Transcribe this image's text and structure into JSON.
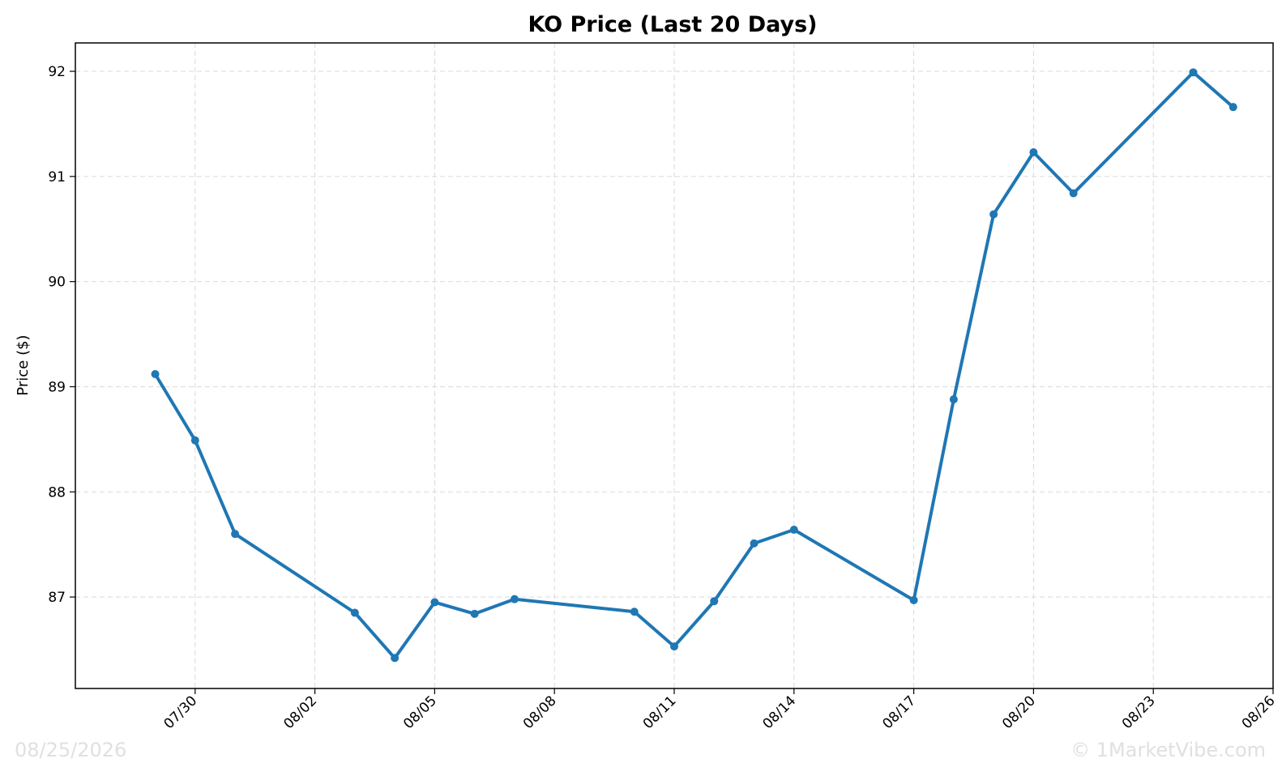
{
  "chart_data": {
    "type": "line",
    "title": "KO Price (Last 20 Days)",
    "xlabel": "",
    "ylabel": "Price ($)",
    "x_ticks": [
      "07/30",
      "08/02",
      "08/05",
      "08/08",
      "08/11",
      "08/14",
      "08/17",
      "08/20",
      "08/23",
      "08/26"
    ],
    "y_ticks": [
      87,
      88,
      89,
      90,
      91,
      92
    ],
    "xlim": [
      "2026-07-27",
      "2026-08-26"
    ],
    "ylim": [
      86.13,
      92.27
    ],
    "grid": true,
    "series": [
      {
        "color": "#1f77b4",
        "points": [
          {
            "date": "2026-07-29",
            "value": 89.12
          },
          {
            "date": "2026-07-30",
            "value": 88.49
          },
          {
            "date": "2026-07-31",
            "value": 87.6
          },
          {
            "date": "2026-08-03",
            "value": 86.85
          },
          {
            "date": "2026-08-04",
            "value": 86.42
          },
          {
            "date": "2026-08-05",
            "value": 86.95
          },
          {
            "date": "2026-08-06",
            "value": 86.84
          },
          {
            "date": "2026-08-07",
            "value": 86.98
          },
          {
            "date": "2026-08-10",
            "value": 86.86
          },
          {
            "date": "2026-08-11",
            "value": 86.53
          },
          {
            "date": "2026-08-12",
            "value": 86.96
          },
          {
            "date": "2026-08-13",
            "value": 87.51
          },
          {
            "date": "2026-08-14",
            "value": 87.64
          },
          {
            "date": "2026-08-17",
            "value": 86.97
          },
          {
            "date": "2026-08-18",
            "value": 88.88
          },
          {
            "date": "2026-08-19",
            "value": 90.64
          },
          {
            "date": "2026-08-20",
            "value": 91.23
          },
          {
            "date": "2026-08-21",
            "value": 90.84
          },
          {
            "date": "2026-08-24",
            "value": 91.99
          },
          {
            "date": "2026-08-25",
            "value": 91.66
          }
        ]
      }
    ]
  },
  "watermark": {
    "date": "08/25/2026",
    "source": "© 1MarketVibe.com"
  }
}
